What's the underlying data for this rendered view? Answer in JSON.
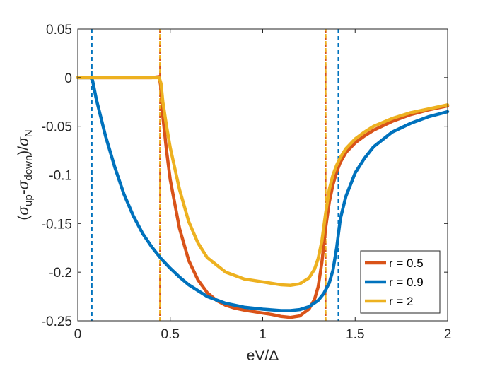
{
  "chart_data": {
    "type": "line",
    "title": "",
    "xlabel": "eV/Δ",
    "ylabel": {
      "open": "(",
      "sigma1": "σ",
      "sub1": "up",
      "minus": "-",
      "sigma2": "σ",
      "sub2": "down",
      "mid": ")/",
      "sigma3": "σ",
      "sub3": "N"
    },
    "xlim": [
      0,
      2
    ],
    "ylim": [
      -0.25,
      0.05
    ],
    "xticks": [
      0,
      0.5,
      1,
      1.5,
      2
    ],
    "xtick_labels": [
      "0",
      "0.5",
      "1",
      "1.5",
      "2"
    ],
    "yticks": [
      -0.25,
      -0.2,
      -0.15,
      -0.1,
      -0.05,
      0,
      0.05
    ],
    "ytick_labels": [
      "-0.25",
      "-0.2",
      "-0.15",
      "-0.1",
      "-0.05",
      "0",
      "0.05"
    ],
    "legend_position": "bottom-right",
    "series": [
      {
        "name": "r = 0.5",
        "color": "#D95319",
        "x": [
          0,
          0.1,
          0.2,
          0.3,
          0.4,
          0.44,
          0.45,
          0.46,
          0.48,
          0.5,
          0.55,
          0.6,
          0.65,
          0.7,
          0.75,
          0.8,
          0.85,
          0.9,
          0.95,
          1.0,
          1.05,
          1.1,
          1.15,
          1.2,
          1.25,
          1.28,
          1.3,
          1.32,
          1.34,
          1.36,
          1.38,
          1.4,
          1.42,
          1.45,
          1.5,
          1.55,
          1.6,
          1.7,
          1.8,
          1.9,
          2.0
        ],
        "values": [
          0,
          0,
          0,
          0,
          0,
          0.001,
          -0.01,
          -0.04,
          -0.075,
          -0.105,
          -0.155,
          -0.188,
          -0.208,
          -0.221,
          -0.229,
          -0.234,
          -0.237,
          -0.239,
          -0.2405,
          -0.242,
          -0.2435,
          -0.2455,
          -0.2465,
          -0.245,
          -0.238,
          -0.228,
          -0.215,
          -0.19,
          -0.155,
          -0.128,
          -0.11,
          -0.097,
          -0.087,
          -0.077,
          -0.067,
          -0.06,
          -0.054,
          -0.045,
          -0.038,
          -0.033,
          -0.029
        ]
      },
      {
        "name": "r = 0.9",
        "color": "#0072BD",
        "x": [
          0,
          0.05,
          0.07,
          0.08,
          0.1,
          0.15,
          0.2,
          0.25,
          0.3,
          0.35,
          0.4,
          0.45,
          0.5,
          0.55,
          0.6,
          0.7,
          0.8,
          0.9,
          1.0,
          1.1,
          1.15,
          1.2,
          1.25,
          1.3,
          1.33,
          1.36,
          1.38,
          1.4,
          1.42,
          1.45,
          1.5,
          1.55,
          1.6,
          1.7,
          1.8,
          1.9,
          2.0
        ],
        "values": [
          0,
          0,
          0,
          -0.003,
          -0.022,
          -0.06,
          -0.092,
          -0.12,
          -0.142,
          -0.16,
          -0.174,
          -0.186,
          -0.196,
          -0.205,
          -0.213,
          -0.225,
          -0.232,
          -0.236,
          -0.238,
          -0.2395,
          -0.2395,
          -0.2385,
          -0.2355,
          -0.229,
          -0.222,
          -0.211,
          -0.198,
          -0.175,
          -0.145,
          -0.122,
          -0.098,
          -0.083,
          -0.071,
          -0.056,
          -0.047,
          -0.04,
          -0.035
        ]
      },
      {
        "name": "r = 2",
        "color": "#EDB120",
        "x": [
          0,
          0.1,
          0.2,
          0.3,
          0.4,
          0.44,
          0.45,
          0.46,
          0.48,
          0.5,
          0.55,
          0.6,
          0.65,
          0.7,
          0.8,
          0.9,
          1.0,
          1.1,
          1.15,
          1.2,
          1.25,
          1.28,
          1.3,
          1.32,
          1.34,
          1.36,
          1.38,
          1.4,
          1.42,
          1.45,
          1.5,
          1.55,
          1.6,
          1.7,
          1.8,
          1.9,
          2.0
        ],
        "values": [
          0,
          0,
          0,
          0,
          0,
          0,
          -0.006,
          -0.025,
          -0.05,
          -0.072,
          -0.115,
          -0.148,
          -0.17,
          -0.185,
          -0.2,
          -0.207,
          -0.21,
          -0.213,
          -0.2135,
          -0.212,
          -0.206,
          -0.197,
          -0.186,
          -0.168,
          -0.14,
          -0.115,
          -0.1,
          -0.09,
          -0.082,
          -0.073,
          -0.063,
          -0.056,
          -0.05,
          -0.042,
          -0.036,
          -0.032,
          -0.028
        ]
      }
    ],
    "vlines": [
      {
        "name": "vline-blue-left",
        "x": 0.075,
        "color": "#0072BD"
      },
      {
        "name": "vline-orange-left",
        "x": 0.445,
        "color": "#D95319"
      },
      {
        "name": "vline-yellow-left",
        "x": 0.445,
        "color": "#EDB120"
      },
      {
        "name": "vline-orange-right",
        "x": 1.34,
        "color": "#D95319"
      },
      {
        "name": "vline-yellow-right",
        "x": 1.34,
        "color": "#EDB120"
      },
      {
        "name": "vline-blue-right",
        "x": 1.41,
        "color": "#0072BD"
      }
    ]
  }
}
